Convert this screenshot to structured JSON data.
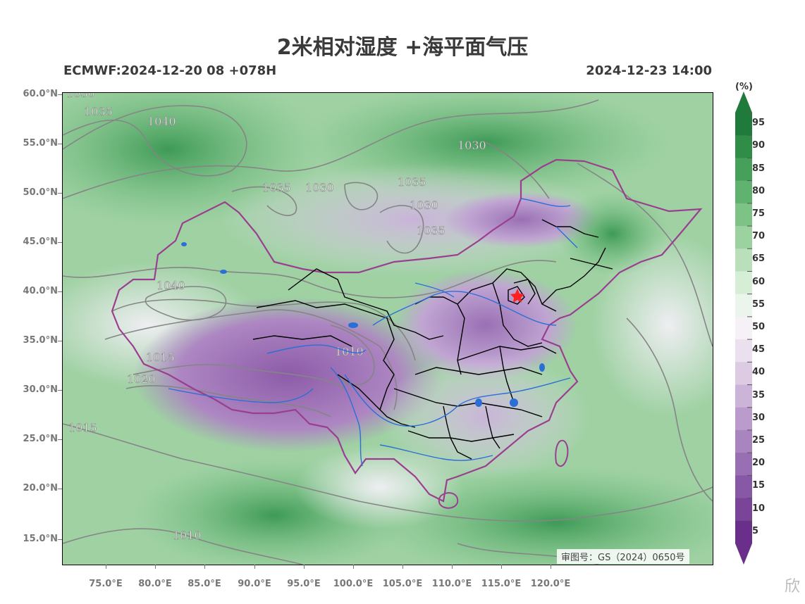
{
  "title": "2米相对湿度 +海平面气压",
  "model_run": "ECMWF:2024-12-20 08 +078H",
  "valid_time": "2024-12-23 14:00",
  "lat_labels": [
    "60.0°N",
    "55.0°N",
    "50.0°N",
    "45.0°N",
    "40.0°N",
    "35.0°N",
    "30.0°N",
    "25.0°N",
    "20.0°N",
    "15.0°N"
  ],
  "lon_labels": [
    "75.0°E",
    "80.0°E",
    "85.0°E",
    "90.0°E",
    "95.0°E",
    "100.0°E",
    "105.0°E",
    "110.0°E",
    "115.0°E",
    "120.0°E"
  ],
  "colorbar": {
    "unit": "(%)",
    "labels": [
      "95",
      "90",
      "85",
      "80",
      "75",
      "70",
      "65",
      "60",
      "55",
      "50",
      "45",
      "40",
      "35",
      "30",
      "25",
      "20",
      "15",
      "10",
      "5"
    ],
    "colors": [
      "#1f7a3c",
      "#2f8d48",
      "#46a05a",
      "#5fb36e",
      "#7cc385",
      "#9bd2a0",
      "#b9e0bb",
      "#d6eed6",
      "#ecf5ec",
      "#f5f1f6",
      "#ebe0ee",
      "#dccbe3",
      "#ccb3d8",
      "#bb9bcc",
      "#a985bf",
      "#986fb2",
      "#8758a5",
      "#7a4498",
      "#6a2f8a"
    ]
  },
  "contour_labels": [
    "1030",
    "1035",
    "1040",
    "1035",
    "1030",
    "1035",
    "1030",
    "1030",
    "1035",
    "1040",
    "1015",
    "1020",
    "1010",
    "1015",
    "1010"
  ],
  "approval_number": "审图号：GS（2024）0650号",
  "watermark": "欣",
  "marker": {
    "type": "star",
    "color": "#ff2020"
  }
}
